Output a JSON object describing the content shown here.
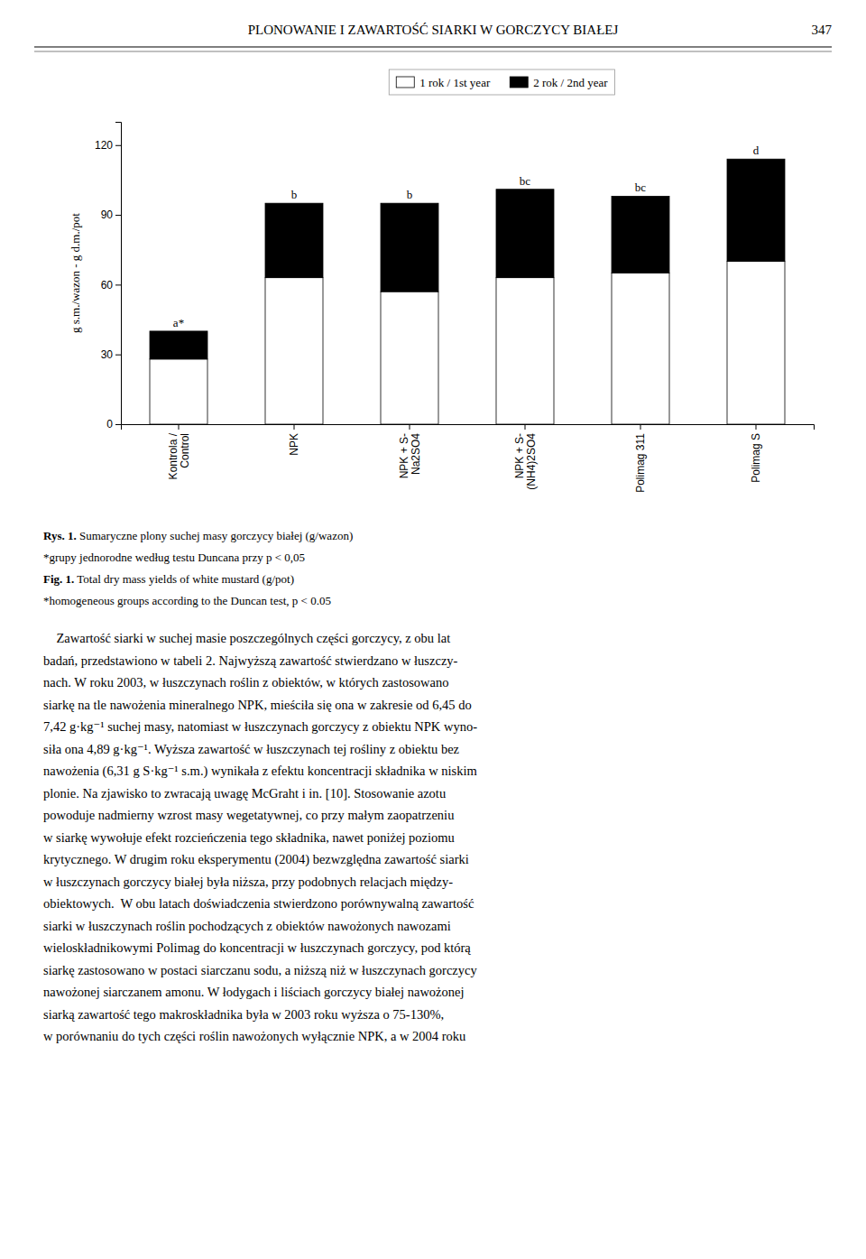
{
  "header": {
    "title": "PLONOWANIE I ZAWARTOŚĆ SIARKI W GORCZYCY BIAŁEJ",
    "page_number": "347"
  },
  "chart_data": {
    "type": "bar",
    "stacked": true,
    "legend": "top",
    "categories": [
      "Kontrola /\nControl",
      "NPK",
      "NPK + S-\nNa2SO4",
      "NPK + S-\n(NH4)2SO4",
      "Polimag 311",
      "Polimag S"
    ],
    "series": [
      {
        "name": "1 rok / 1st year",
        "color": "#ffffff",
        "values": [
          28,
          63,
          57,
          63,
          65,
          70
        ]
      },
      {
        "name": "2 rok / 2nd year",
        "color": "#000000",
        "values": [
          12,
          32,
          38,
          38,
          33,
          44
        ]
      }
    ],
    "annotations": [
      "a*",
      "b",
      "b",
      "bc",
      "bc",
      "d"
    ],
    "ylabel": "g s.m./wazon - g d.m./pot",
    "ylim": [
      0,
      130
    ],
    "yticks": [
      0,
      30,
      60,
      90,
      120
    ]
  },
  "caption": [
    {
      "bold": "Rys. 1.",
      "text": " Sumaryczne plony suchej masy gorczycy białej (g/wazon)"
    },
    {
      "text": "*grupy jednorodne według testu Duncana przy p < 0,05"
    },
    {
      "bold": "Fig. 1.",
      "text": " Total dry mass yields of white mustard (g/pot)"
    },
    {
      "text": "*homogeneous groups according to the Duncan test, p < 0.05"
    }
  ],
  "body": [
    "    Zawartość siarki w suchej masie poszczególnych części gorczycy, z obu lat",
    "badań, przedstawiono w tabeli 2. Najwyższą zawartość stwierdzano w łuszczy-",
    "nach. W roku 2003, w łuszczynach roślin z obiektów, w których zastosowano",
    "siarkę na tle nawożenia mineralnego NPK, mieściła się ona w zakresie od 6,45 do",
    "7,42 g·kg⁻¹ suchej masy, natomiast w łuszczynach gorczycy z obiektu NPK wyno-",
    "siła ona 4,89 g·kg⁻¹. Wyższa zawartość w łuszczynach tej rośliny z obiektu bez",
    "nawożenia (6,31 g S·kg⁻¹ s.m.) wynikała z efektu koncentracji składnika w niskim",
    "plonie. Na zjawisko to zwracają uwagę McGraht i in. [10]. Stosowanie azotu",
    "powoduje nadmierny wzrost masy wegetatywnej, co przy małym zaopatrzeniu",
    "w siarkę wywołuje efekt rozcieńczenia tego składnika, nawet poniżej poziomu",
    "krytycznego. W drugim roku eksperymentu (2004) bezwzględna zawartość siarki",
    "w łuszczynach gorczycy białej była niższa, przy podobnych relacjach między-",
    "obiektowych.  W obu latach doświadczenia stwierdzono porównywalną zawartość",
    "siarki w łuszczynach roślin pochodzących z obiektów nawożonych nawozami",
    "wieloskładnikowymi Polimag do koncentracji w łuszczynach gorczycy, pod którą",
    "siarkę zastosowano w postaci siarczanu sodu, a niższą niż w łuszczynach gorczycy",
    "nawożonej siarczanem amonu. W łodygach i liściach gorczycy białej nawożonej",
    "siarką zawartość tego makroskładnika była w 2003 roku wyższa o 75-130%,",
    "w porównaniu do tych części roślin nawożonych wyłącznie NPK, a w 2004 roku"
  ]
}
